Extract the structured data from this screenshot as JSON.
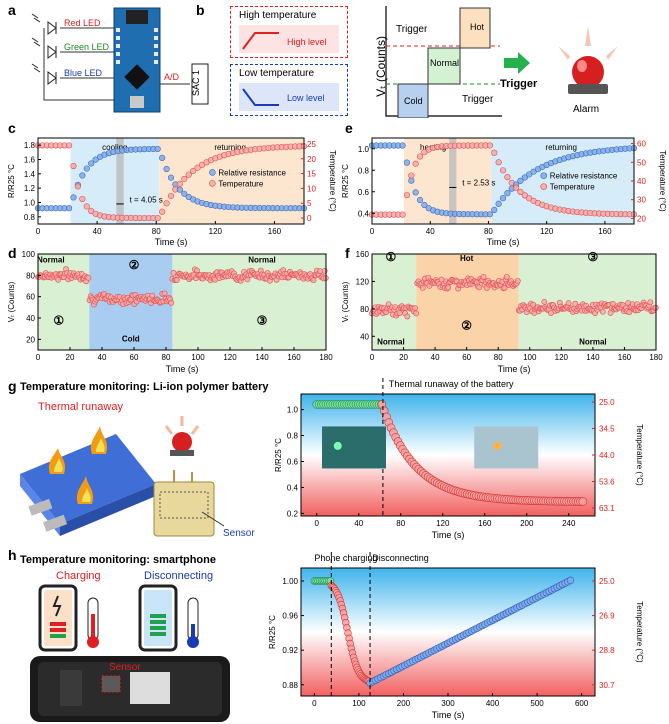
{
  "panels": {
    "a": "a",
    "b": "b",
    "c": "c",
    "d": "d",
    "e": "e",
    "f": "f",
    "g": "g",
    "h": "h"
  },
  "panel_a": {
    "leds": [
      "Red LED",
      "Green LED",
      "Blue LED"
    ],
    "ad": "A/D",
    "sac": "SAC 1"
  },
  "panel_b": {
    "high_title": "High temperature",
    "high_level": "High level",
    "low_title": "Low temperature",
    "low_level": "Low level",
    "ylabel": "Vₜ (Counts)",
    "trigger_top": "Trigger",
    "trigger_bottom": "Trigger",
    "cold": "Cold",
    "normal": "Normal",
    "hot": "Hot",
    "trigger_arrow": "Trigger",
    "alarm": "Alarm"
  },
  "chart_data": [
    {
      "id": "c",
      "type": "scatter",
      "xlabel": "Time (s)",
      "ylabel": "R/R25 °C",
      "y2label": "Temperature (°C)",
      "xlim": [
        0,
        180
      ],
      "ylim": [
        0.7,
        1.9
      ],
      "y2lim": [
        -2,
        27
      ],
      "xticks": [
        0,
        40,
        80,
        120,
        160
      ],
      "yticks": [
        0.8,
        1.0,
        1.2,
        1.4,
        1.6,
        1.8
      ],
      "y2ticks": [
        0,
        5,
        10,
        15,
        20,
        25
      ],
      "regions": [
        {
          "label": "cooling",
          "x": [
            22,
            82
          ]
        },
        {
          "label": "returning",
          "x": [
            82,
            180
          ]
        }
      ],
      "annotation": "t = 4.05 s",
      "series": [
        {
          "name": "Relative resistance",
          "color": "#5b8fd9"
        },
        {
          "name": "Temperature",
          "color": "#f08080"
        }
      ]
    },
    {
      "id": "e",
      "type": "scatter",
      "xlabel": "Time (s)",
      "ylabel": "R/R25 °C",
      "y2label": "Temperature (°C)",
      "xlim": [
        0,
        180
      ],
      "ylim": [
        0.3,
        1.1
      ],
      "y2lim": [
        17,
        63
      ],
      "xticks": [
        0,
        40,
        80,
        120,
        160
      ],
      "yticks": [
        0.4,
        0.6,
        0.8,
        1.0
      ],
      "y2ticks": [
        20,
        30,
        40,
        50,
        60
      ],
      "regions": [
        {
          "label": "heating",
          "x": [
            22,
            82
          ]
        },
        {
          "label": "returning",
          "x": [
            82,
            180
          ]
        }
      ],
      "annotation": "t = 2.53 s",
      "series": [
        {
          "name": "Relative resistance",
          "color": "#5b8fd9"
        },
        {
          "name": "Temperature",
          "color": "#f08080"
        }
      ]
    },
    {
      "id": "d",
      "type": "scatter",
      "xlabel": "Time (s)",
      "ylabel": "Vₜ (Counts)",
      "xlim": [
        0,
        180
      ],
      "ylim": [
        10,
        100
      ],
      "xticks": [
        0,
        20,
        40,
        60,
        80,
        100,
        120,
        140,
        160,
        180
      ],
      "yticks": [
        20,
        40,
        60,
        80,
        100
      ],
      "labels": [
        "Normal",
        "Cold",
        "Normal"
      ],
      "circles": [
        "①",
        "②",
        "③"
      ]
    },
    {
      "id": "f",
      "type": "scatter",
      "xlabel": "Time (s)",
      "ylabel": "Vₜ (Counts)",
      "xlim": [
        0,
        180
      ],
      "ylim": [
        20,
        160
      ],
      "xticks": [
        0,
        20,
        40,
        60,
        80,
        100,
        120,
        140,
        160,
        180
      ],
      "yticks": [
        40,
        80,
        120,
        160
      ],
      "labels": [
        "Normal",
        "Hot",
        "Normal"
      ],
      "circles": [
        "①",
        "②",
        "③"
      ]
    },
    {
      "id": "g",
      "type": "scatter",
      "xlabel": "Time (s)",
      "ylabel": "R/R25 °C",
      "y2label": "Temperature (°C)",
      "xlim": [
        -15,
        265
      ],
      "ylim": [
        0.18,
        1.12
      ],
      "xticks": [
        0,
        40,
        80,
        120,
        160,
        200,
        240
      ],
      "yticks": [
        0.2,
        0.4,
        0.6,
        0.8,
        1.0
      ],
      "y2ticks": [
        "25.0",
        "34.5",
        "44.0",
        "53.6",
        "63.1"
      ],
      "annotation": "Thermal runaway of the battery"
    },
    {
      "id": "h",
      "type": "scatter",
      "xlabel": "Time (s)",
      "ylabel": "R/R25 °C",
      "y2label": "Temperature (°C)",
      "xlim": [
        -30,
        630
      ],
      "ylim": [
        0.867,
        1.015
      ],
      "xticks": [
        0,
        100,
        200,
        300,
        400,
        500,
        600
      ],
      "yticks": [
        0.88,
        0.92,
        0.96,
        1.0
      ],
      "y2ticks": [
        "25.0",
        "26.9",
        "28.8",
        "30.7"
      ],
      "annotations": [
        "Phone charging",
        "Disconnecting"
      ]
    }
  ],
  "panel_g": {
    "title": "Temperature monitoring: Li-ion polymer battery",
    "thermal": "Thermal runaway",
    "sensor": "Sensor"
  },
  "panel_h": {
    "title": "Temperature monitoring: smartphone",
    "charging": "Charging",
    "disconnecting": "Disconnecting",
    "sensor": "Sensor"
  }
}
